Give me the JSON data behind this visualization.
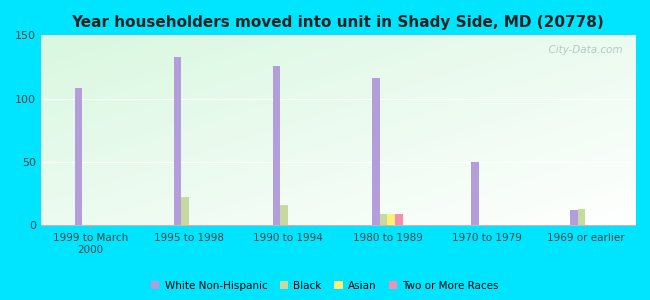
{
  "title": "Year householders moved into unit in Shady Side, MD (20778)",
  "categories": [
    "1999 to March\n2000",
    "1995 to 1998",
    "1990 to 1994",
    "1980 to 1989",
    "1970 to 1979",
    "1969 or earlier"
  ],
  "series": {
    "White Non-Hispanic": [
      108,
      133,
      126,
      116,
      50,
      12
    ],
    "Black": [
      0,
      22,
      16,
      9,
      0,
      13
    ],
    "Asian": [
      0,
      0,
      0,
      9,
      0,
      0
    ],
    "Two or More Races": [
      0,
      0,
      0,
      9,
      0,
      0
    ]
  },
  "colors": {
    "White Non-Hispanic": "#b39ddb",
    "Black": "#c5d9a0",
    "Asian": "#fff176",
    "Two or More Races": "#f48fb1"
  },
  "ylim": [
    0,
    150
  ],
  "yticks": [
    0,
    50,
    100,
    150
  ],
  "outer_bg": "#00e5ff",
  "bar_width": 0.08,
  "watermark": "  City-Data.com",
  "legend_entries": [
    "White Non-Hispanic",
    "Black",
    "Asian",
    "Two or More Races"
  ]
}
